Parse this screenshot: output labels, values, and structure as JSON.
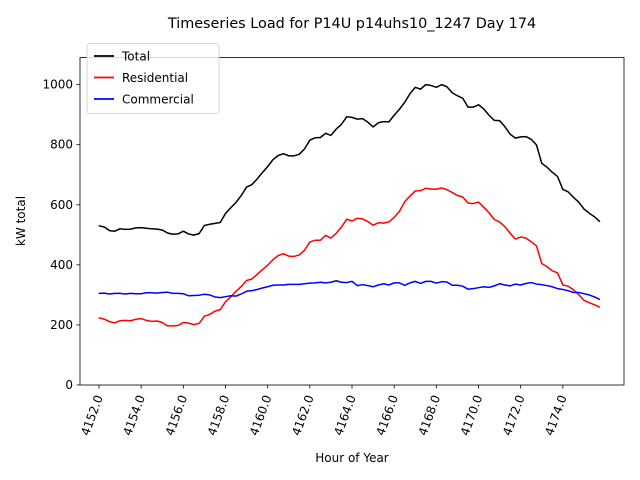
{
  "chart_data": {
    "type": "line",
    "title": "Timeseries Load for P14U p14uhs10_1247  Day 174",
    "xlabel": "Hour of Year",
    "ylabel": "kW total",
    "xlim": [
      4151.1,
      4176.9
    ],
    "ylim": [
      0,
      1090
    ],
    "xticks": [
      4152,
      4154,
      4156,
      4158,
      4160,
      4162,
      4164,
      4166,
      4168,
      4170,
      4172,
      4174
    ],
    "xtick_labels": [
      "4152.0",
      "4154.0",
      "4156.0",
      "4158.0",
      "4160.0",
      "4162.0",
      "4164.0",
      "4166.0",
      "4168.0",
      "4170.0",
      "4172.0",
      "4174.0"
    ],
    "yticks": [
      0,
      200,
      400,
      600,
      800,
      1000
    ],
    "ytick_labels": [
      "0",
      "200",
      "400",
      "600",
      "800",
      "1000"
    ],
    "grid": false,
    "legend_position": "top-left",
    "x_start": 4152,
    "x_step": 0.25,
    "series": [
      {
        "name": "Total",
        "color": "#000000",
        "values": [
          530,
          526,
          514,
          512,
          520,
          518,
          519,
          523,
          524,
          522,
          520,
          519,
          516,
          506,
          502,
          503,
          512,
          503,
          499,
          504,
          531,
          535,
          538,
          541,
          571,
          590,
          608,
          631,
          659,
          667,
          686,
          707,
          727,
          750,
          764,
          770,
          763,
          763,
          768,
          786,
          815,
          823,
          824,
          838,
          831,
          852,
          868,
          893,
          891,
          885,
          887,
          875,
          859,
          873,
          877,
          876,
          898,
          918,
          941,
          970,
          991,
          985,
          1000,
          997,
          991,
          1000,
          993,
          973,
          963,
          955,
          925,
          925,
          933,
          919,
          898,
          881,
          880,
          860,
          835,
          822,
          826,
          827,
          818,
          799,
          738,
          725,
          708,
          694,
          651,
          643,
          625,
          609,
          586,
          572,
          560,
          544
        ]
      },
      {
        "name": "Residential",
        "color": "#ff0000",
        "values": [
          224,
          219,
          211,
          207,
          214,
          215,
          214,
          219,
          221,
          215,
          212,
          213,
          208,
          197,
          197,
          198,
          208,
          206,
          201,
          205,
          229,
          235,
          246,
          251,
          277,
          293,
          312,
          328,
          348,
          353,
          368,
          384,
          399,
          417,
          431,
          437,
          429,
          428,
          433,
          449,
          476,
          482,
          482,
          498,
          489,
          505,
          526,
          552,
          546,
          555,
          553,
          544,
          532,
          540,
          539,
          543,
          558,
          578,
          610,
          629,
          646,
          647,
          655,
          652,
          652,
          656,
          650,
          641,
          631,
          626,
          606,
          604,
          609,
          592,
          573,
          551,
          543,
          527,
          505,
          486,
          493,
          489,
          477,
          463,
          404,
          394,
          380,
          373,
          333,
          329,
          317,
          301,
          282,
          274,
          267,
          259
        ]
      },
      {
        "name": "Commercial",
        "color": "#0000ff",
        "values": [
          305,
          306,
          303,
          305,
          305,
          303,
          305,
          304,
          304,
          307,
          307,
          306,
          308,
          309,
          305,
          305,
          304,
          297,
          298,
          299,
          302,
          300,
          293,
          291,
          294,
          297,
          296,
          303,
          312,
          314,
          318,
          323,
          327,
          332,
          333,
          333,
          335,
          335,
          335,
          337,
          339,
          340,
          342,
          340,
          342,
          347,
          342,
          341,
          345,
          331,
          334,
          331,
          327,
          333,
          337,
          333,
          340,
          340,
          332,
          340,
          345,
          338,
          345,
          345,
          339,
          344,
          343,
          332,
          332,
          329,
          319,
          321,
          324,
          327,
          325,
          330,
          337,
          333,
          330,
          336,
          333,
          338,
          341,
          336,
          334,
          331,
          327,
          321,
          318,
          314,
          308,
          308,
          304,
          300,
          293,
          285
        ]
      }
    ]
  }
}
